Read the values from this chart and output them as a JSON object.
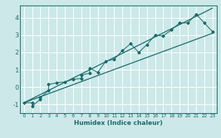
{
  "xlabel": "Humidex (Indice chaleur)",
  "ylabel": "",
  "xlim": [
    -0.5,
    23.5
  ],
  "ylim": [
    -1.5,
    4.7
  ],
  "xticks": [
    0,
    1,
    2,
    3,
    4,
    5,
    6,
    7,
    8,
    9,
    10,
    11,
    12,
    13,
    14,
    15,
    16,
    17,
    18,
    19,
    20,
    21,
    22,
    23
  ],
  "yticks": [
    -1,
    0,
    1,
    2,
    3,
    4
  ],
  "bg_color": "#cce8e8",
  "line_color": "#1a6b6b",
  "grid_color": "#ffffff",
  "data_x": [
    0,
    1,
    1,
    2,
    2,
    3,
    3,
    4,
    5,
    6,
    7,
    7,
    8,
    8,
    9,
    10,
    11,
    12,
    13,
    14,
    15,
    16,
    17,
    18,
    19,
    20,
    21,
    22,
    23
  ],
  "data_y": [
    -0.9,
    -0.9,
    -1.1,
    -0.7,
    -0.6,
    -0.2,
    0.15,
    0.25,
    0.3,
    0.45,
    0.5,
    0.7,
    0.8,
    1.1,
    0.85,
    1.5,
    1.6,
    2.1,
    2.5,
    2.0,
    2.45,
    3.0,
    2.95,
    3.3,
    3.7,
    3.7,
    4.2,
    3.7,
    3.2
  ],
  "line1_x": [
    0,
    23
  ],
  "line1_y": [
    -0.9,
    3.1
  ],
  "line2_x": [
    0,
    23
  ],
  "line2_y": [
    -0.9,
    4.55
  ]
}
